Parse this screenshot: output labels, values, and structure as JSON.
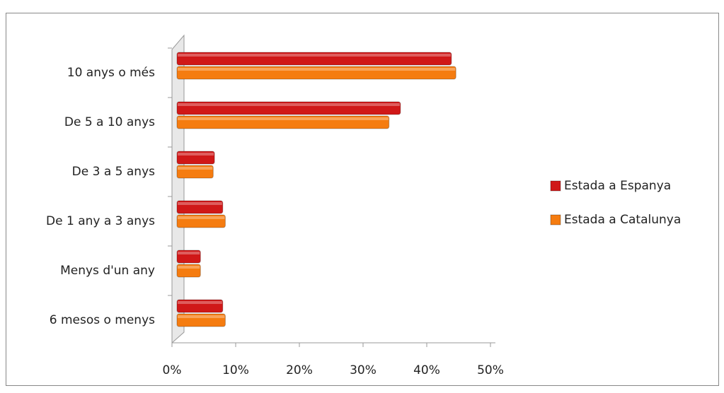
{
  "chart_data": {
    "type": "barh",
    "categories": [
      "10 anys o més",
      "De 5 a 10 anys",
      "De 3 a 5 anys",
      "De 1 any a 3 anys",
      "Menys d'un any",
      "6 mesos o menys"
    ],
    "series": [
      {
        "name": "Estada a Espanya",
        "color": "#d01818",
        "values": [
          43.1,
          35.1,
          5.9,
          7.2,
          3.7,
          7.2
        ]
      },
      {
        "name": "Estada a Catalunya",
        "color": "#f57c10",
        "values": [
          43.8,
          33.3,
          5.7,
          7.6,
          3.7,
          7.6
        ]
      }
    ],
    "xlim": [
      0,
      50
    ],
    "xticks": [
      {
        "value": 0,
        "label": "0%"
      },
      {
        "value": 10,
        "label": "10%"
      },
      {
        "value": 20,
        "label": "20%"
      },
      {
        "value": 30,
        "label": "30%"
      },
      {
        "value": 40,
        "label": "40%"
      },
      {
        "value": 50,
        "label": "50%"
      }
    ],
    "legend": "right",
    "grid": false
  }
}
